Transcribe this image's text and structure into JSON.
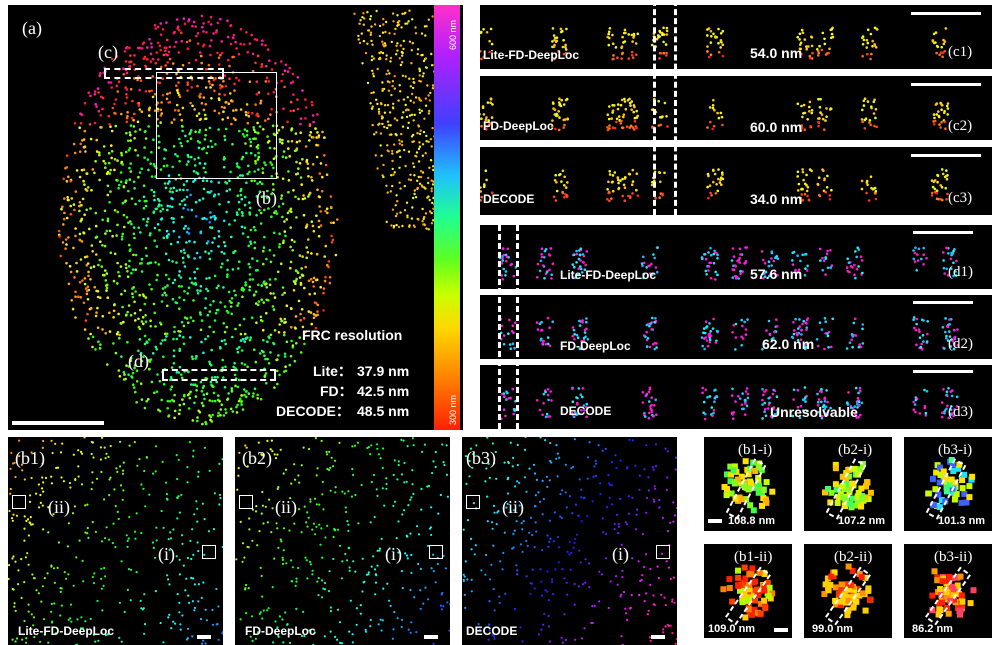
{
  "panel_a": {
    "label": "(a)",
    "roi_c_label": "(c)",
    "roi_b_label": "(b)",
    "roi_d_label": "(d)",
    "frc_title": "FRC resolution",
    "frc_rows": [
      {
        "name": "Lite：",
        "value": "37.9 nm"
      },
      {
        "name": "FD：",
        "value": "42.5 nm"
      },
      {
        "name": "DECODE：",
        "value": "48.5 nm"
      }
    ],
    "colorbar_top": "600 nm",
    "colorbar_bottom": "300 nm"
  },
  "panels_c": [
    {
      "label": "(c1)",
      "method": "Lite-FD-DeepLoc",
      "value": "54.0 nm"
    },
    {
      "label": "(c2)",
      "method": "FD-DeepLoc",
      "value": "60.0 nm"
    },
    {
      "label": "(c3)",
      "method": "DECODE",
      "value": "34.0 nm"
    }
  ],
  "panels_d": [
    {
      "label": "(d1)",
      "method": "Lite-FD-DeepLoc",
      "value": "57.6 nm"
    },
    {
      "label": "(d2)",
      "method": "FD-DeepLoc",
      "value": "62.0 nm"
    },
    {
      "label": "(d3)",
      "method": "DECODE",
      "value": "Unresolvable"
    }
  ],
  "panels_b": [
    {
      "label": "(b1)",
      "method": "Lite-FD-DeepLoc",
      "roi_i": "(i)",
      "roi_ii": "(ii)"
    },
    {
      "label": "(b2)",
      "method": "FD-DeepLoc",
      "roi_i": "(i)",
      "roi_ii": "(ii)"
    },
    {
      "label": "(b3)",
      "method": "DECODE",
      "roi_i": "(i)",
      "roi_ii": "(ii)"
    }
  ],
  "zooms_i": [
    {
      "label": "(b1-i)",
      "value": "108.8 nm"
    },
    {
      "label": "(b2-i)",
      "value": "107.2 nm"
    },
    {
      "label": "(b3-i)",
      "value": "101.3 nm"
    }
  ],
  "zooms_ii": [
    {
      "label": "(b1-ii)",
      "value": "109.0 nm"
    },
    {
      "label": "(b2-ii)",
      "value": "99.0 nm"
    },
    {
      "label": "(b3-ii)",
      "value": "86.2 nm"
    }
  ]
}
